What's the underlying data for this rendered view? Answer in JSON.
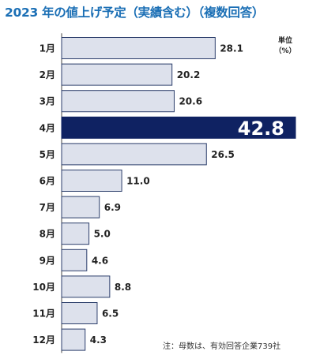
{
  "title": "2023 年の値上げ予定（実績含む）（複数回答）",
  "unit_label": "単位",
  "unit_value": "（%）",
  "note": "注：母数は、有効回答企業739社",
  "colors": {
    "title": "#1b6fb5",
    "bar_fill": "#dde1ec",
    "bar_stroke": "#2c3e6b",
    "highlight": "#0f2262",
    "axis": "#444444"
  },
  "chart_data": {
    "type": "bar",
    "orientation": "horizontal",
    "categories": [
      "1月",
      "2月",
      "3月",
      "4月",
      "5月",
      "6月",
      "7月",
      "8月",
      "9月",
      "10月",
      "11月",
      "12月"
    ],
    "values": [
      28.1,
      20.2,
      20.6,
      42.8,
      26.5,
      11.0,
      6.9,
      5.0,
      4.6,
      8.8,
      6.5,
      4.3
    ],
    "value_labels": [
      "28.1",
      "20.2",
      "20.6",
      "42.8",
      "26.5",
      "11.0",
      "6.9",
      "5.0",
      "4.6",
      "8.8",
      "6.5",
      "4.3"
    ],
    "highlight_category": "4月",
    "xlim": [
      0,
      42.8
    ],
    "grid": false,
    "title": "2023 年の値上げ予定（実績含む）（複数回答）"
  }
}
